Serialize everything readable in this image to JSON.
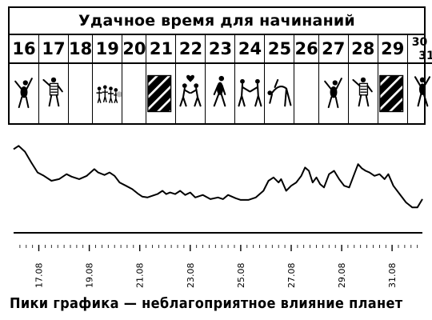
{
  "title": "Удачное время для начинаний",
  "days": [
    "16",
    "17",
    "18",
    "19",
    "20",
    "21",
    "22",
    "23",
    "24",
    "25",
    "26",
    "27",
    "28",
    "29",
    "30/31"
  ],
  "day_split": {
    "a": "30",
    "b": "31"
  },
  "day_pictures": [
    {
      "icon": "waving-figure-icon"
    },
    {
      "icon": "striped-shirt-figure-icon"
    },
    {
      "icon": "empty-icon"
    },
    {
      "icon": "crowd-figures-icon"
    },
    {
      "icon": "empty-icon"
    },
    {
      "icon": "black-hatched-block-icon"
    },
    {
      "icon": "couple-heart-icon"
    },
    {
      "icon": "walking-figure-icon"
    },
    {
      "icon": "handshake-figures-icon"
    },
    {
      "icon": "bending-figure-icon"
    },
    {
      "icon": "empty-icon"
    },
    {
      "icon": "waving-figure-icon"
    },
    {
      "icon": "striped-shirt-figure-icon"
    },
    {
      "icon": "black-hatched-block-icon"
    },
    {
      "icon": "cheering-figure-icon"
    }
  ],
  "caption": "Пики графика — неблагоприятное влияние планет",
  "chart_data": {
    "type": "line",
    "title": "",
    "xlabel": "",
    "ylabel": "",
    "x_tick_labels": [
      "17.08",
      "19.08",
      "21.08",
      "23.08",
      "25.08",
      "27.08",
      "29.08",
      "31.08"
    ],
    "x_tick_positions": [
      17,
      19,
      21,
      23,
      25,
      27,
      29,
      31
    ],
    "xlim": [
      16,
      32.2
    ],
    "ylim": [
      0,
      100
    ],
    "grid": false,
    "line_color": "#000000",
    "series": [
      {
        "values": [
          [
            16.0,
            88
          ],
          [
            16.2,
            92
          ],
          [
            16.45,
            85
          ],
          [
            16.7,
            72
          ],
          [
            16.95,
            60
          ],
          [
            17.2,
            56
          ],
          [
            17.5,
            50
          ],
          [
            17.8,
            52
          ],
          [
            18.1,
            58
          ],
          [
            18.3,
            55
          ],
          [
            18.6,
            52
          ],
          [
            18.9,
            56
          ],
          [
            19.2,
            64
          ],
          [
            19.35,
            60
          ],
          [
            19.6,
            57
          ],
          [
            19.8,
            60
          ],
          [
            20.0,
            56
          ],
          [
            20.2,
            48
          ],
          [
            20.45,
            44
          ],
          [
            20.7,
            40
          ],
          [
            20.95,
            34
          ],
          [
            21.1,
            31
          ],
          [
            21.3,
            30
          ],
          [
            21.5,
            32
          ],
          [
            21.7,
            34
          ],
          [
            21.9,
            38
          ],
          [
            22.05,
            34
          ],
          [
            22.2,
            36
          ],
          [
            22.4,
            34
          ],
          [
            22.6,
            38
          ],
          [
            22.8,
            33
          ],
          [
            23.0,
            36
          ],
          [
            23.2,
            30
          ],
          [
            23.5,
            33
          ],
          [
            23.8,
            28
          ],
          [
            24.1,
            30
          ],
          [
            24.3,
            28
          ],
          [
            24.5,
            33
          ],
          [
            24.8,
            29
          ],
          [
            25.0,
            27
          ],
          [
            25.3,
            27
          ],
          [
            25.6,
            30
          ],
          [
            25.9,
            38
          ],
          [
            26.1,
            50
          ],
          [
            26.3,
            54
          ],
          [
            26.5,
            48
          ],
          [
            26.6,
            52
          ],
          [
            26.8,
            38
          ],
          [
            27.0,
            44
          ],
          [
            27.2,
            48
          ],
          [
            27.4,
            56
          ],
          [
            27.55,
            66
          ],
          [
            27.7,
            62
          ],
          [
            27.85,
            48
          ],
          [
            28.0,
            54
          ],
          [
            28.15,
            46
          ],
          [
            28.3,
            42
          ],
          [
            28.5,
            58
          ],
          [
            28.7,
            62
          ],
          [
            28.9,
            52
          ],
          [
            29.1,
            44
          ],
          [
            29.3,
            42
          ],
          [
            29.5,
            58
          ],
          [
            29.65,
            70
          ],
          [
            29.8,
            65
          ],
          [
            29.95,
            62
          ],
          [
            30.1,
            60
          ],
          [
            30.3,
            56
          ],
          [
            30.5,
            58
          ],
          [
            30.7,
            52
          ],
          [
            30.85,
            58
          ],
          [
            31.05,
            44
          ],
          [
            31.3,
            34
          ],
          [
            31.55,
            24
          ],
          [
            31.8,
            18
          ],
          [
            32.0,
            18
          ],
          [
            32.2,
            28
          ]
        ]
      }
    ]
  }
}
